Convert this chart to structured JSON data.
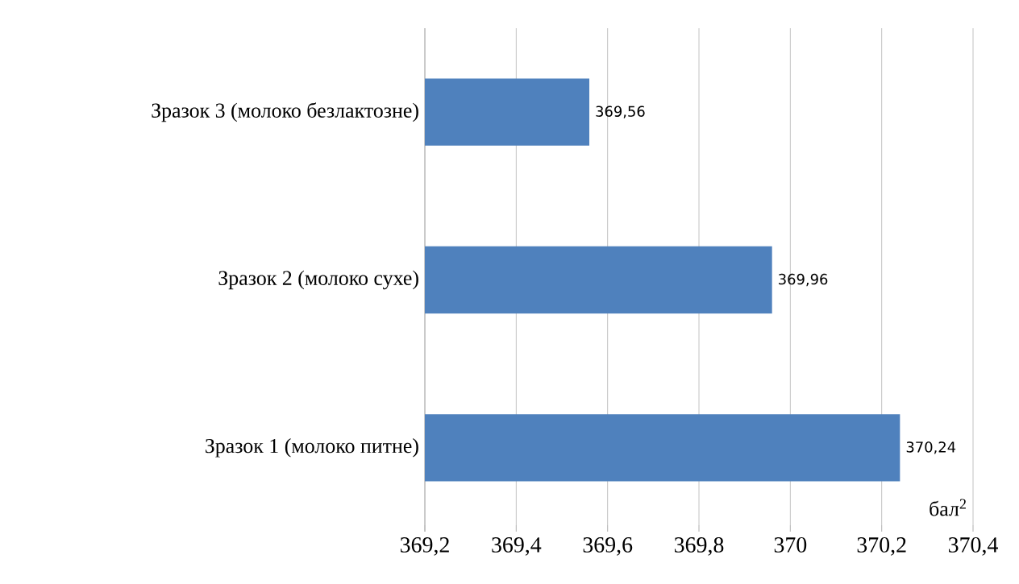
{
  "chart_data": {
    "type": "bar",
    "orientation": "horizontal",
    "xlabel": "бал$^{2}$",
    "categories": [
      "Зразок 3 (молоко безлактозне)",
      "Зразок 2 (молоко сухе)",
      "Зразок 1 (молоко питне)"
    ],
    "values": [
      369.56,
      369.96,
      370.24
    ],
    "value_labels": [
      "369,56",
      "369,96",
      "370,24"
    ],
    "color": "#4f81bd",
    "xlim": [
      369.2,
      370.4
    ],
    "xticks": [
      {
        "value": 369.2,
        "label": "369,2"
      },
      {
        "value": 369.4,
        "label": "369,4"
      },
      {
        "value": 369.6,
        "label": "369,6"
      },
      {
        "value": 369.8,
        "label": "369,8"
      },
      {
        "value": 370,
        "label": "370"
      },
      {
        "value": 370.2,
        "label": "370,2"
      },
      {
        "value": 370.4,
        "label": "370,4"
      }
    ],
    "grid": "x"
  }
}
